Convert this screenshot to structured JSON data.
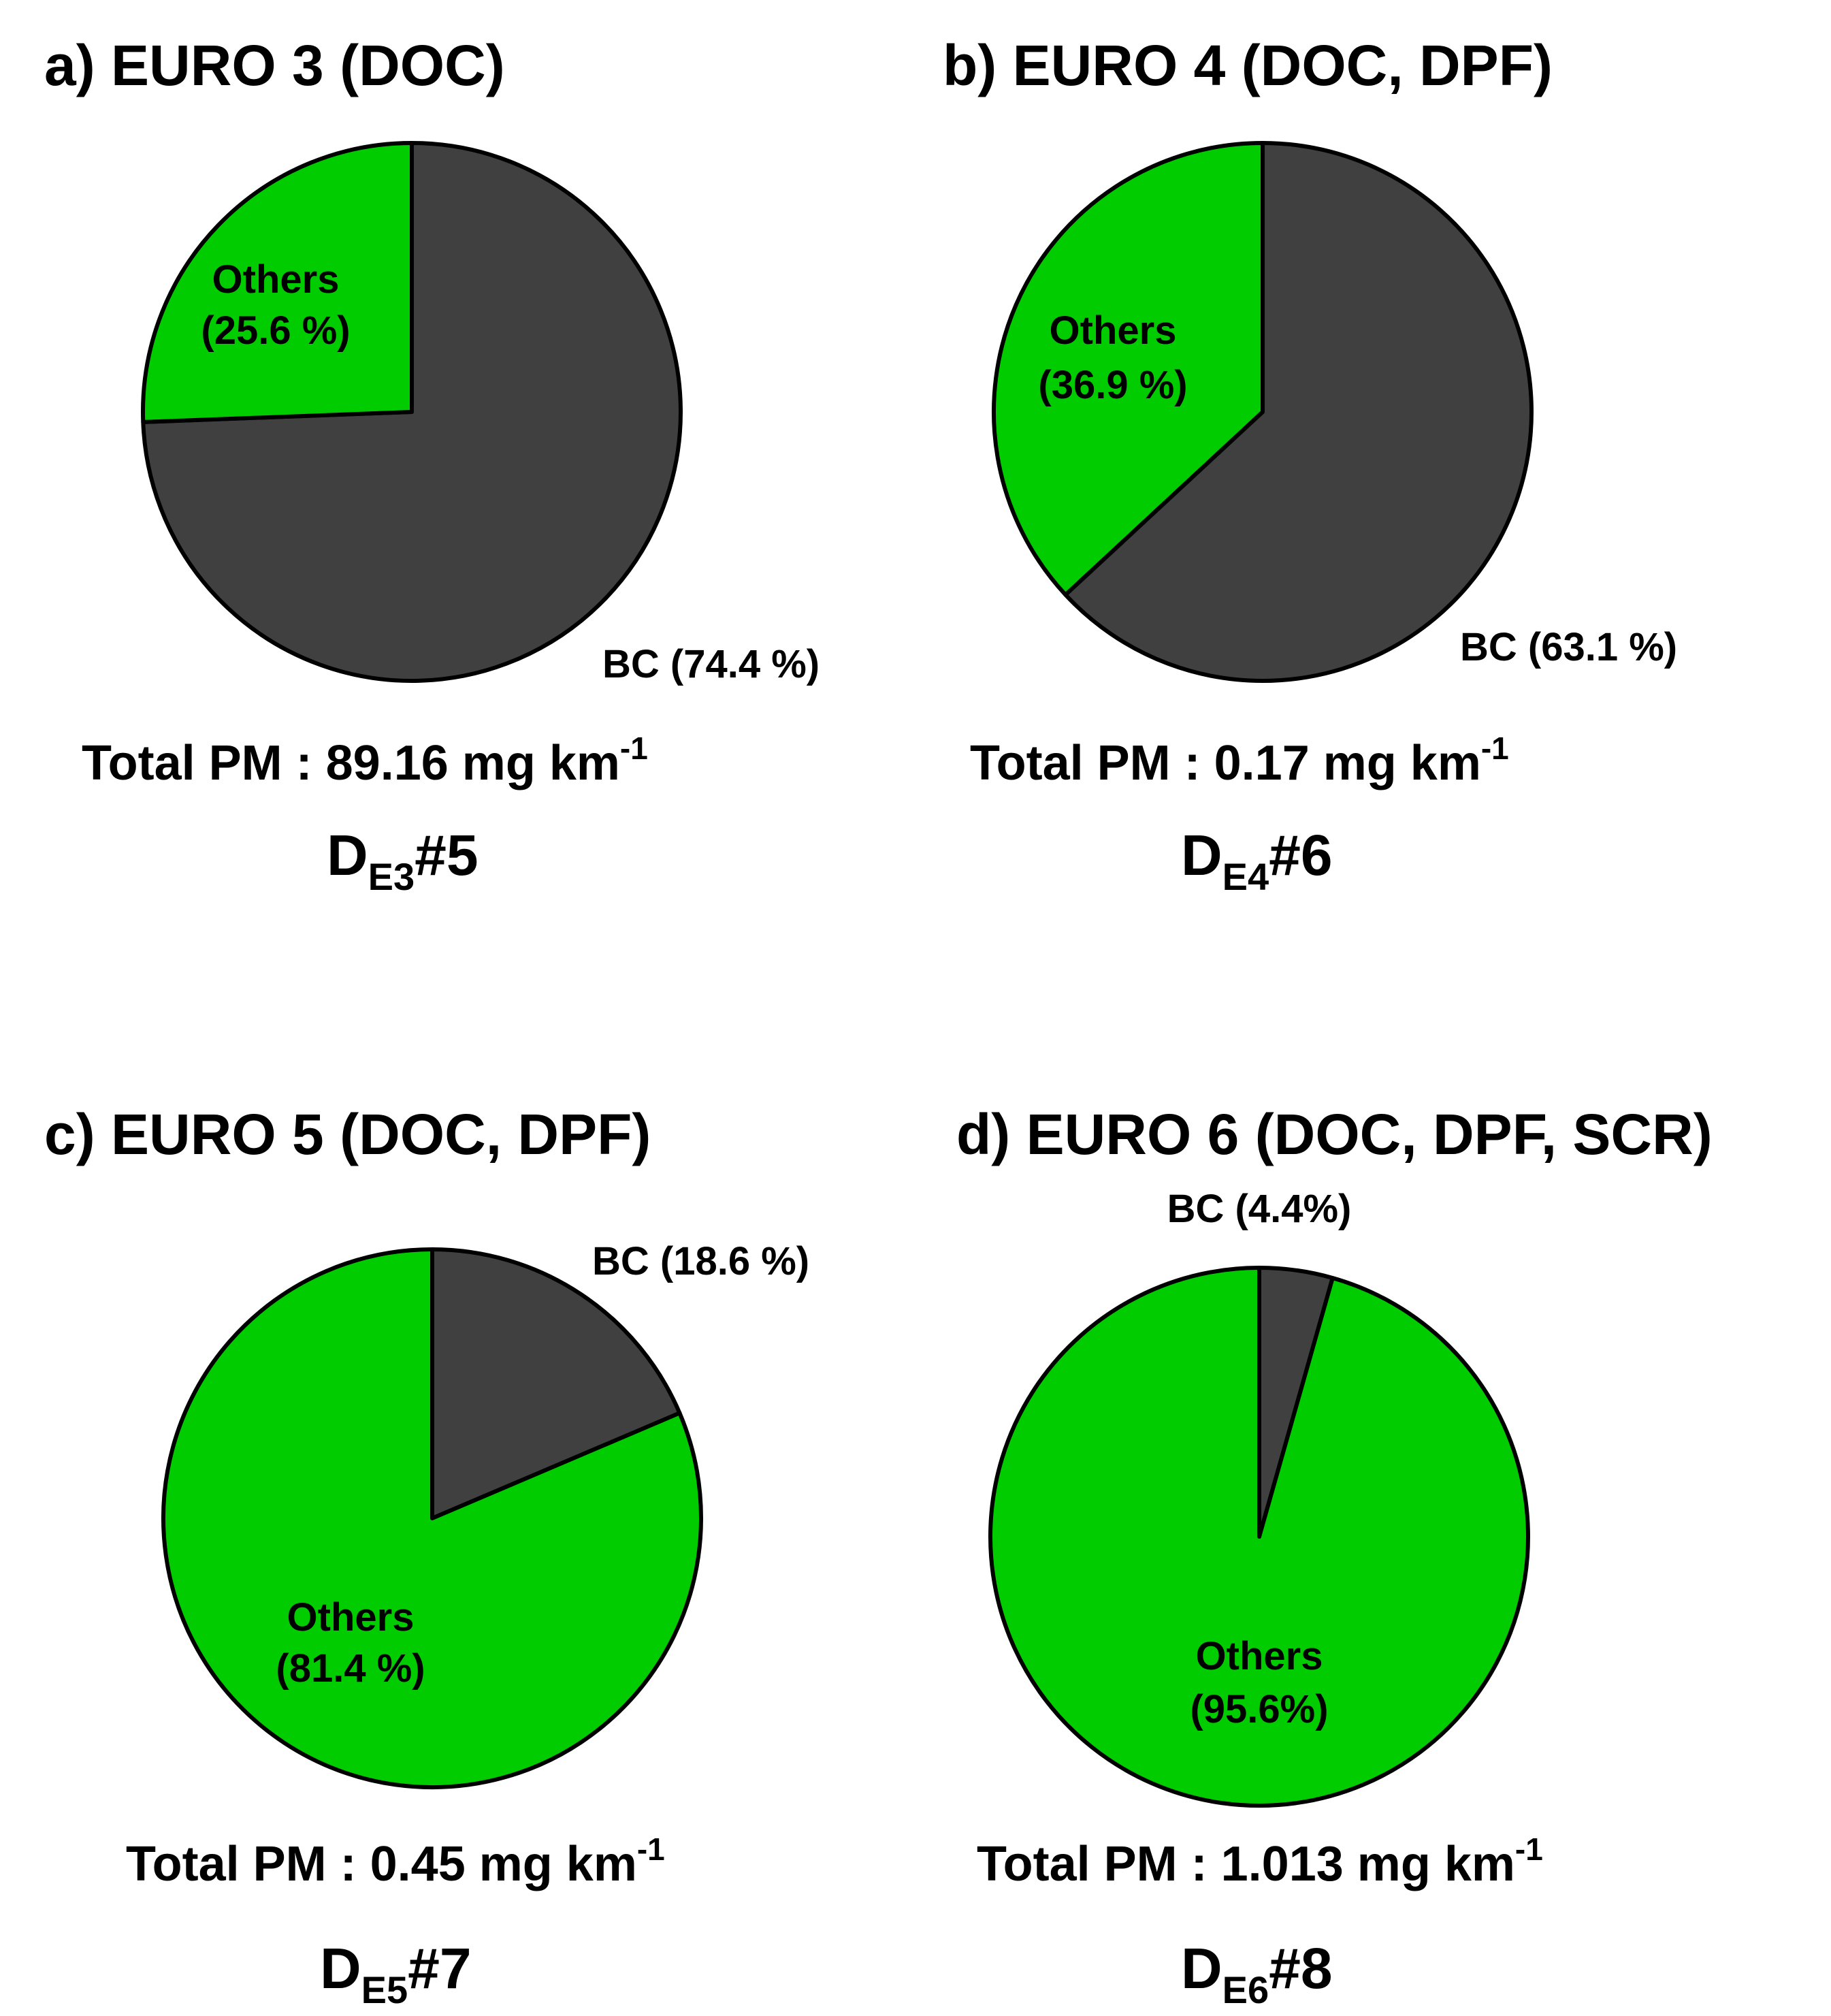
{
  "colors": {
    "bc": "#404040",
    "others": "#00cc00",
    "outline": "#000000",
    "background": "#ffffff"
  },
  "chart_data": [
    {
      "type": "pie",
      "title": "a) EURO 3 (DOC)",
      "slices": [
        {
          "name": "BC",
          "value": 74.4,
          "label_line1": "BC (74.4 %)",
          "label_line2": ""
        },
        {
          "name": "Others",
          "value": 25.6,
          "label_line1": "Others",
          "label_line2": "(25.6 %)"
        }
      ],
      "total_pm": {
        "prefix": "Total PM : ",
        "value": "89.16",
        "unit": " mg km",
        "superscript": "-1"
      },
      "sample": {
        "main": "D",
        "sub": "E3",
        "suffix": "#5"
      }
    },
    {
      "type": "pie",
      "title": "b) EURO 4 (DOC, DPF)",
      "slices": [
        {
          "name": "BC",
          "value": 63.1,
          "label_line1": "BC (63.1 %)",
          "label_line2": ""
        },
        {
          "name": "Others",
          "value": 36.9,
          "label_line1": "Others",
          "label_line2": "(36.9 %)"
        }
      ],
      "total_pm": {
        "prefix": "Total PM : ",
        "value": "0.17",
        "unit": " mg km",
        "superscript": "-1"
      },
      "sample": {
        "main": "D",
        "sub": "E4",
        "suffix": "#6"
      }
    },
    {
      "type": "pie",
      "title": "c) EURO 5 (DOC, DPF)",
      "slices": [
        {
          "name": "BC",
          "value": 18.6,
          "label_line1": "BC (18.6 %)",
          "label_line2": ""
        },
        {
          "name": "Others",
          "value": 81.4,
          "label_line1": "Others",
          "label_line2": "(81.4 %)"
        }
      ],
      "total_pm": {
        "prefix": "Total PM : ",
        "value": "0.45",
        "unit": " mg km",
        "superscript": "-1"
      },
      "sample": {
        "main": "D",
        "sub": "E5",
        "suffix": "#7"
      }
    },
    {
      "type": "pie",
      "title": "d) EURO 6 (DOC, DPF, SCR)",
      "slices": [
        {
          "name": "BC",
          "value": 4.4,
          "label_line1": "BC (4.4%)",
          "label_line2": ""
        },
        {
          "name": "Others",
          "value": 95.6,
          "label_line1": "Others",
          "label_line2": "(95.6%)"
        }
      ],
      "total_pm": {
        "prefix": "Total PM : ",
        "value": "1.013",
        "unit": " mg km",
        "superscript": "-1"
      },
      "sample": {
        "main": "D",
        "sub": "E6",
        "suffix": "#8"
      }
    }
  ]
}
